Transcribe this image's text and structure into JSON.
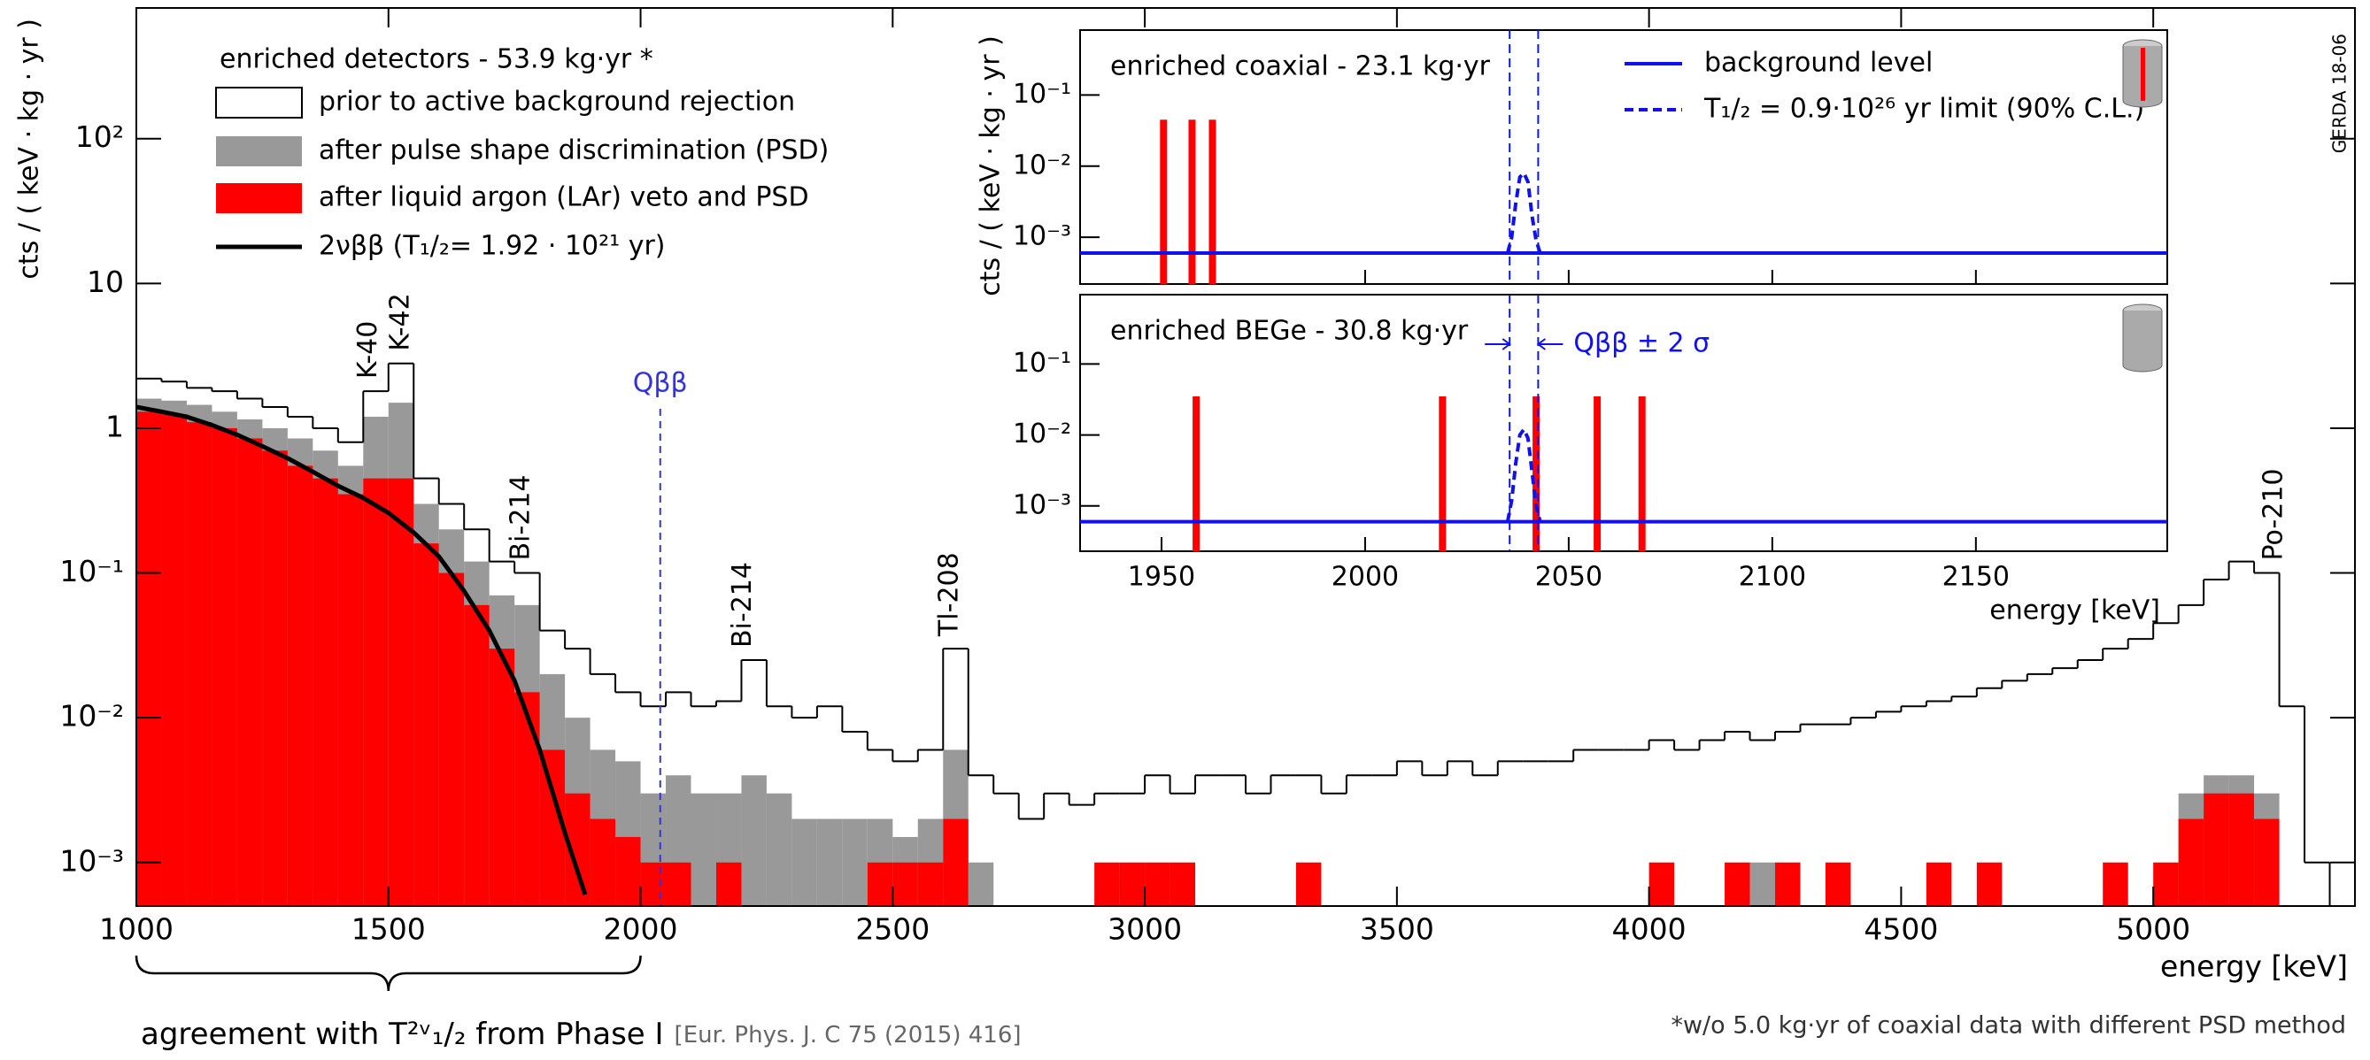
{
  "chart_data": [
    {
      "type": "histogram",
      "ylabel": "cts / ( keV · kg · yr )",
      "xlabel": "energy [keV]",
      "log_y": true,
      "xlim": [
        1000,
        5400
      ],
      "ylim": [
        0.0005,
        800
      ],
      "xticks": [
        1000,
        1500,
        2000,
        2500,
        3000,
        3500,
        4000,
        4500,
        5000
      ],
      "yticks": [
        {
          "value": 0.001,
          "label": "10⁻³"
        },
        {
          "value": 0.01,
          "label": "10⁻²"
        },
        {
          "value": 0.1,
          "label": "10⁻¹"
        },
        1,
        10,
        {
          "value": 100,
          "label": "10²"
        }
      ],
      "legend_title": "enriched detectors - 53.9 kg·yr *",
      "bins": [
        1000,
        1050,
        1100,
        1150,
        1200,
        1250,
        1300,
        1350,
        1400,
        1450,
        1500,
        1550,
        1600,
        1650,
        1700,
        1750,
        1800,
        1850,
        1900,
        1950,
        2000,
        2050,
        2100,
        2150,
        2200,
        2250,
        2300,
        2350,
        2400,
        2450,
        2500,
        2550,
        2600,
        2650,
        2700,
        2750,
        2800,
        2850,
        2900,
        2950,
        3000,
        3050,
        3100,
        3150,
        3200,
        3250,
        3300,
        3350,
        3400,
        3450,
        3500,
        3550,
        3600,
        3650,
        3700,
        3750,
        3800,
        3850,
        3900,
        3950,
        4000,
        4050,
        4100,
        4150,
        4200,
        4250,
        4300,
        4350,
        4400,
        4450,
        4500,
        4550,
        4600,
        4650,
        4700,
        4750,
        4800,
        4850,
        4900,
        4950,
        5000,
        5050,
        5100,
        5150,
        5200,
        5250,
        5300,
        5350,
        5400
      ],
      "series": [
        {
          "name": "prior to active background rejection",
          "color": "#000000",
          "values": [
            2.2,
            2.1,
            1.9,
            1.8,
            1.6,
            1.4,
            1.2,
            1.0,
            0.8,
            1.8,
            2.8,
            0.45,
            0.3,
            0.2,
            0.12,
            0.1,
            0.04,
            0.03,
            0.02,
            0.015,
            0.012,
            0.015,
            0.012,
            0.013,
            0.025,
            0.012,
            0.01,
            0.012,
            0.008,
            0.006,
            0.005,
            0.006,
            0.03,
            0.004,
            0.003,
            0.002,
            0.003,
            0.0025,
            0.003,
            0.003,
            0.004,
            0.003,
            0.004,
            0.004,
            0.003,
            0.004,
            0.004,
            0.003,
            0.004,
            0.004,
            0.005,
            0.004,
            0.005,
            0.004,
            0.005,
            0.005,
            0.005,
            0.006,
            0.006,
            0.006,
            0.007,
            0.006,
            0.007,
            0.008,
            0.007,
            0.008,
            0.009,
            0.009,
            0.01,
            0.011,
            0.012,
            0.013,
            0.014,
            0.016,
            0.018,
            0.02,
            0.022,
            0.025,
            0.03,
            0.035,
            0.045,
            0.06,
            0.09,
            0.12,
            0.1,
            0.012,
            0.001,
            null
          ]
        },
        {
          "name": "after pulse shape discrimination (PSD)",
          "color": "#999999",
          "values": [
            1.6,
            1.55,
            1.45,
            1.3,
            1.15,
            1.0,
            0.85,
            0.7,
            0.55,
            1.2,
            1.5,
            0.3,
            0.2,
            0.12,
            0.07,
            0.06,
            0.02,
            0.01,
            0.006,
            0.005,
            0.003,
            0.004,
            0.003,
            0.003,
            0.004,
            0.003,
            0.002,
            0.002,
            0.002,
            0.002,
            0.0015,
            0.002,
            0.006,
            0.001,
            null,
            null,
            null,
            null,
            null,
            null,
            null,
            null,
            null,
            null,
            null,
            null,
            null,
            null,
            null,
            null,
            null,
            null,
            null,
            null,
            null,
            null,
            null,
            null,
            null,
            null,
            null,
            null,
            null,
            null,
            0.001,
            null,
            null,
            null,
            null,
            null,
            null,
            null,
            null,
            null,
            null,
            null,
            null,
            null,
            null,
            null,
            null,
            0.003,
            0.004,
            0.004,
            0.003,
            null,
            null,
            null
          ]
        },
        {
          "name": "after liquid argon (LAr) veto and PSD",
          "color": "#ff0000",
          "values": [
            1.3,
            1.25,
            1.1,
            1.0,
            0.85,
            0.7,
            0.55,
            0.45,
            0.35,
            0.45,
            0.45,
            0.16,
            0.1,
            0.06,
            0.03,
            0.015,
            0.006,
            0.003,
            0.002,
            0.0015,
            0.001,
            0.001,
            null,
            0.001,
            null,
            null,
            null,
            null,
            null,
            0.001,
            0.001,
            0.001,
            0.002,
            null,
            null,
            null,
            null,
            null,
            0.001,
            0.001,
            0.001,
            0.001,
            null,
            null,
            null,
            null,
            0.001,
            null,
            null,
            null,
            null,
            null,
            null,
            null,
            null,
            null,
            null,
            null,
            null,
            null,
            0.001,
            null,
            null,
            0.001,
            null,
            0.001,
            null,
            0.001,
            null,
            null,
            null,
            0.001,
            null,
            0.001,
            null,
            null,
            null,
            null,
            0.001,
            null,
            0.001,
            0.002,
            0.003,
            0.003,
            0.002,
            null,
            null,
            null
          ]
        }
      ],
      "curve": {
        "name": "2νββ   (T₁/₂= 1.92 · 10²¹ yr)",
        "color": "#000000",
        "x": [
          1000,
          1050,
          1100,
          1150,
          1200,
          1250,
          1300,
          1350,
          1400,
          1450,
          1500,
          1550,
          1600,
          1650,
          1700,
          1750,
          1800,
          1850,
          1890
        ],
        "values": [
          1.4,
          1.3,
          1.2,
          1.05,
          0.9,
          0.75,
          0.62,
          0.5,
          0.4,
          0.33,
          0.26,
          0.19,
          0.13,
          0.075,
          0.04,
          0.018,
          0.006,
          0.0016,
          0.0006
        ]
      },
      "q_line": {
        "label": "Qββ",
        "x": 2039,
        "color": "#3333dd"
      },
      "annotations": [
        {
          "text": "K-40",
          "x": 1461
        },
        {
          "text": "K-42",
          "x": 1525
        },
        {
          "text": "Bi-214",
          "x": 1764
        },
        {
          "text": "Bi-214",
          "x": 2204
        },
        {
          "text": "Tl-208",
          "x": 2614
        },
        {
          "text": "Po-210",
          "x": 5240
        }
      ],
      "watermark": "GERDA 18-06",
      "caption": "agreement with T²ᵛ₁/₂ from Phase I",
      "reference": "[Eur. Phys. J. C 75 (2015) 416]",
      "footnote": "*w/o 5.0 kg·yr of coaxial data with different PSD method"
    },
    {
      "type": "spike",
      "label": "enriched coaxial - 23.1 kg·yr",
      "ylabel": "cts / ( keV · kg · yr )",
      "log_y": true,
      "xlim": [
        1930,
        2197
      ],
      "ylim": [
        0.00022,
        0.82
      ],
      "yticks": [
        {
          "value": 0.1,
          "label": "10⁻¹"
        },
        {
          "value": 0.01,
          "label": "10⁻²"
        },
        {
          "value": 0.001,
          "label": "10⁻³"
        }
      ],
      "events": {
        "color": "#ff0000",
        "x": [
          1950.5,
          1957.5,
          1962.5
        ],
        "values": [
          0.045,
          0.045,
          0.045
        ]
      },
      "background": {
        "name": "background level",
        "color": "#1111ee",
        "value": 0.0006
      },
      "limit": {
        "name": "T₁/₂ = 0.9·10²⁶ yr limit (90% C.L.)",
        "color": "#1111ee",
        "x": [
          2035,
          2036,
          2037,
          2038,
          2039,
          2040,
          2041,
          2042,
          2043
        ],
        "values": [
          0.0006,
          0.001,
          0.003,
          0.007,
          0.008,
          0.006,
          0.002,
          0.0009,
          0.0006
        ]
      },
      "band": [
        2035.5,
        2042.5
      ]
    },
    {
      "type": "spike",
      "label": "enriched BEGe - 30.8 kg·yr",
      "log_y": true,
      "xlim": [
        1930,
        2197
      ],
      "ylim": [
        0.00023,
        0.95
      ],
      "xticks": [
        1950,
        2000,
        2050,
        2100,
        2150
      ],
      "xlabel": "energy [keV]",
      "yticks": [
        {
          "value": 0.1,
          "label": "10⁻¹"
        },
        {
          "value": 0.01,
          "label": "10⁻²"
        },
        {
          "value": 0.001,
          "label": "10⁻³"
        }
      ],
      "events": {
        "color": "#ff0000",
        "x": [
          1958.5,
          2019,
          2042,
          2057,
          2068
        ],
        "values": [
          0.035,
          0.035,
          0.035,
          0.035,
          0.035
        ]
      },
      "background": {
        "color": "#1111ee",
        "value": 0.0006
      },
      "limit": {
        "color": "#1111ee",
        "x": [
          2035,
          2036,
          2037,
          2038,
          2039,
          2040,
          2041,
          2042,
          2043
        ],
        "values": [
          0.0006,
          0.0012,
          0.004,
          0.01,
          0.012,
          0.009,
          0.003,
          0.001,
          0.0006
        ]
      },
      "band": [
        2035.5,
        2042.5
      ],
      "band_label": "Qββ ± 2 σ"
    }
  ]
}
